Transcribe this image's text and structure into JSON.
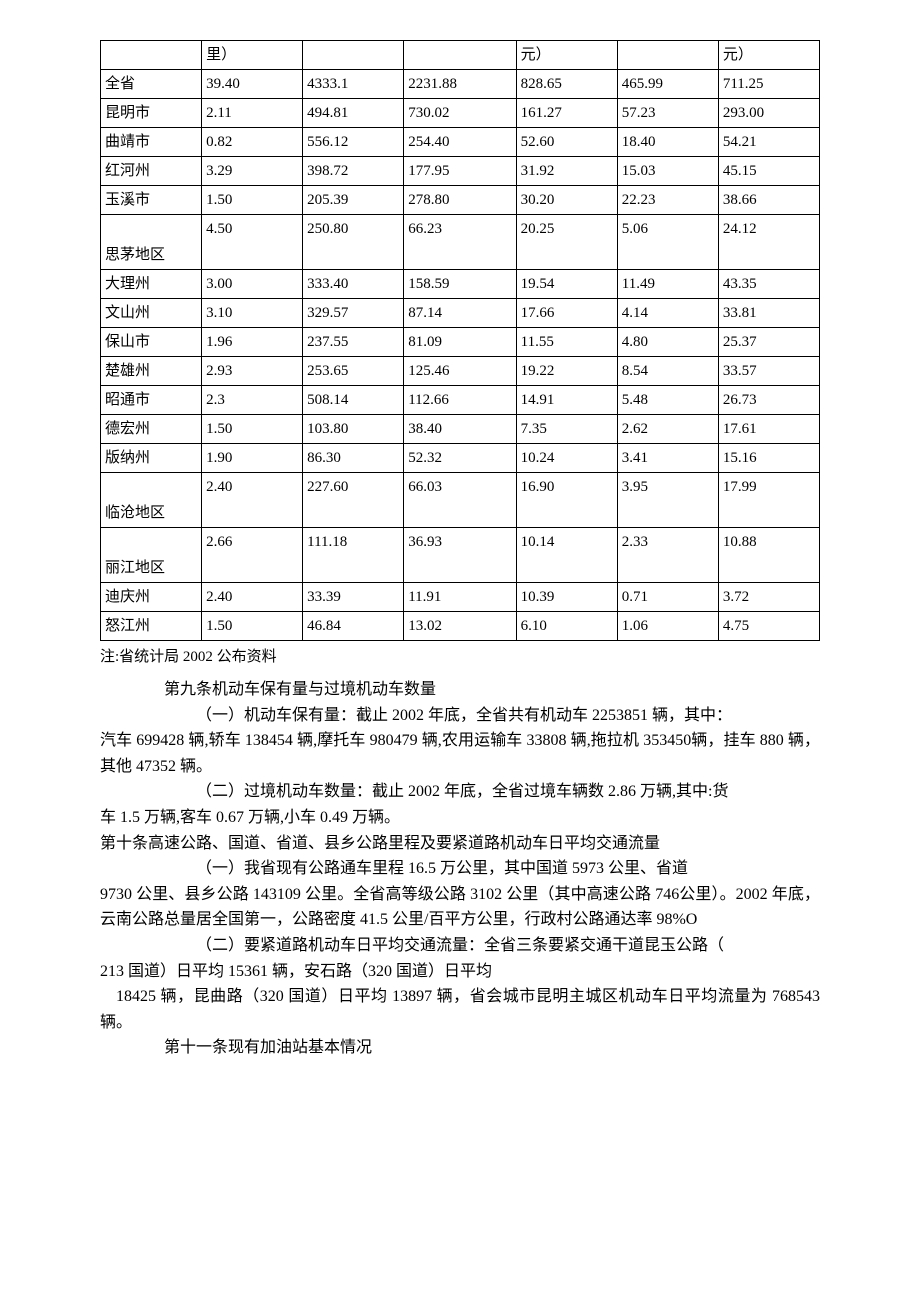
{
  "table": {
    "header_row": [
      "",
      "里）",
      "",
      "",
      "元）",
      "",
      "元）"
    ],
    "rows": [
      {
        "region": "全省",
        "c1": "39.40",
        "c2": "4333.1",
        "c3": "2231.88",
        "c4": "828.65",
        "c5": "465.99",
        "c6": "711.25"
      },
      {
        "region": "昆明市",
        "c1": "2.11",
        "c2": "494.81",
        "c3": "730.02",
        "c4": "161.27",
        "c5": "57.23",
        "c6": "293.00"
      },
      {
        "region": "曲靖市",
        "c1": "0.82",
        "c2": "556.12",
        "c3": "254.40",
        "c4": "52.60",
        "c5": "18.40",
        "c6": "54.21"
      },
      {
        "region": "红河州",
        "c1": "3.29",
        "c2": "398.72",
        "c3": "177.95",
        "c4": "31.92",
        "c5": "15.03",
        "c6": "45.15"
      },
      {
        "region": "玉溪市",
        "c1": "1.50",
        "c2": "205.39",
        "c3": "278.80",
        "c4": "30.20",
        "c5": "22.23",
        "c6": "38.66"
      },
      {
        "region": "思茅地区",
        "c1": "4.50",
        "c2": "250.80",
        "c3": "66.23",
        "c4": "20.25",
        "c5": "5.06",
        "c6": "24.12",
        "tall": true
      },
      {
        "region": "大理州",
        "c1": "3.00",
        "c2": "333.40",
        "c3": "158.59",
        "c4": "19.54",
        "c5": "11.49",
        "c6": "43.35"
      },
      {
        "region": "文山州",
        "c1": "3.10",
        "c2": "329.57",
        "c3": "87.14",
        "c4": "17.66",
        "c5": "4.14",
        "c6": "33.81"
      },
      {
        "region": "保山市",
        "c1": "1.96",
        "c2": "237.55",
        "c3": "81.09",
        "c4": "11.55",
        "c5": "4.80",
        "c6": "25.37"
      },
      {
        "region": "楚雄州",
        "c1": "2.93",
        "c2": "253.65",
        "c3": "125.46",
        "c4": "19.22",
        "c5": "8.54",
        "c6": "33.57"
      },
      {
        "region": "昭通市",
        "c1": "2.3",
        "c2": "508.14",
        "c3": "112.66",
        "c4": "14.91",
        "c5": "5.48",
        "c6": "26.73"
      },
      {
        "region": "德宏州",
        "c1": "1.50",
        "c2": "103.80",
        "c3": "38.40",
        "c4": "7.35",
        "c5": "2.62",
        "c6": "17.61"
      },
      {
        "region": "版纳州",
        "c1": "1.90",
        "c2": "86.30",
        "c3": "52.32",
        "c4": "10.24",
        "c5": "3.41",
        "c6": "15.16"
      },
      {
        "region": "临沧地区",
        "c1": "2.40",
        "c2": "227.60",
        "c3": "66.03",
        "c4": "16.90",
        "c5": "3.95",
        "c6": "17.99",
        "tall": true
      },
      {
        "region": "丽江地区",
        "c1": "2.66",
        "c2": "111.18",
        "c3": "36.93",
        "c4": "10.14",
        "c5": "2.33",
        "c6": "10.88",
        "tall": true
      },
      {
        "region": "迪庆州",
        "c1": "2.40",
        "c2": "33.39",
        "c3": "11.91",
        "c4": "10.39",
        "c5": "0.71",
        "c6": "3.72"
      },
      {
        "region": "怒江州",
        "c1": "1.50",
        "c2": "46.84",
        "c3": "13.02",
        "c4": "6.10",
        "c5": "1.06",
        "c6": "4.75"
      }
    ]
  },
  "note": "注:省统计局 2002 公布资料",
  "paragraphs": {
    "p1": "第九条机动车保有量与过境机动车数量",
    "p2": "（一）机动车保有量：截止 2002 年底，全省共有机动车 2253851 辆，其中：",
    "p3": "汽车 699428 辆,轿车 138454 辆,摩托车 980479 辆,农用运输车 33808 辆,拖拉机 353450辆，挂车 880 辆，其他 47352 辆。",
    "p4": "（二）过境机动车数量：截止 2002 年底，全省过境车辆数 2.86 万辆,其中:货",
    "p5": "车 1.5 万辆,客车 0.67 万辆,小车 0.49 万辆。",
    "p6": "第十条高速公路、国道、省道、县乡公路里程及要紧道路机动车日平均交通流量",
    "p7": "（一）我省现有公路通车里程 16.5 万公里，其中国道 5973 公里、省道",
    "p8": "9730 公里、县乡公路 143109 公里。全省高等级公路 3102 公里（其中高速公路 746公里）。2002 年底，云南公路总量居全国第一，公路密度 41.5 公里/百平方公里，行政村公路通达率 98%O",
    "p9": "（二）要紧道路机动车日平均交通流量：全省三条要紧交通干道昆玉公路（",
    "p10": "213 国道）日平均 15361 辆，安石路（320 国道）日平均",
    "p11": "18425 辆，昆曲路（320 国道）日平均 13897 辆，省会城市昆明主城区机动车日平均流量为 768543 辆。",
    "p12": "第十一条现有加油站基本情况"
  }
}
